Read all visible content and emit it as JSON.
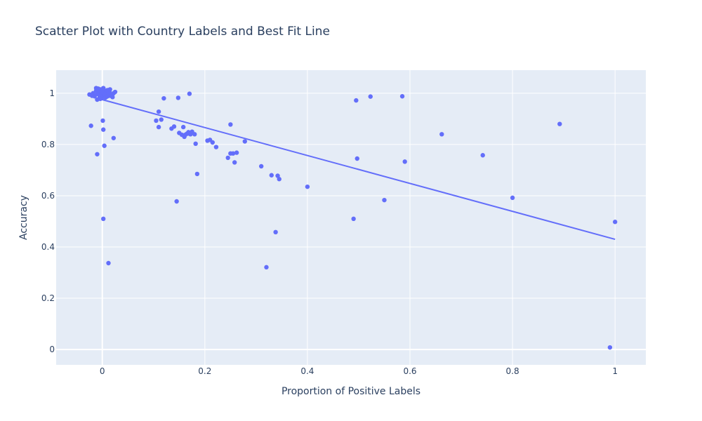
{
  "chart_data": {
    "type": "scatter",
    "title": "Scatter Plot with Country Labels and Best Fit Line",
    "xlabel": "Proportion of Positive Labels",
    "ylabel": "Accuracy",
    "xlim": [
      -0.09,
      1.06
    ],
    "ylim": [
      -0.06,
      1.09
    ],
    "x_ticks": [
      0,
      0.2,
      0.4,
      0.6,
      0.8,
      1
    ],
    "x_tick_labels": [
      "0",
      "0.2",
      "0.4",
      "0.6",
      "0.8",
      "1"
    ],
    "y_ticks": [
      0,
      0.2,
      0.4,
      0.6,
      0.8,
      1
    ],
    "y_tick_labels": [
      "0",
      "0.2",
      "0.4",
      "0.6",
      "0.8",
      "1"
    ],
    "grid": true,
    "colors": {
      "plot_bg": "#e5ecf6",
      "grid": "#ffffff",
      "marker": "#636efa",
      "line": "#636efa",
      "text": "#2a3f5f"
    },
    "best_fit": {
      "x": [
        0,
        1
      ],
      "y": [
        0.975,
        0.43
      ]
    },
    "series": [
      {
        "type": "scatter",
        "x": [
          -0.025,
          -0.02,
          -0.018,
          -0.015,
          -0.012,
          -0.01,
          -0.008,
          -0.006,
          -0.005,
          -0.004,
          -0.003,
          -0.002,
          -0.001,
          0,
          0.001,
          0.002,
          0.003,
          0.004,
          0.005,
          0.006,
          0.007,
          0.008,
          0.009,
          0.01,
          0.011,
          0.012,
          0.013,
          0.014,
          0.015,
          0.016,
          0.018,
          0.02,
          0.022,
          0.025,
          -0.012,
          -0.008,
          -0.004,
          0.002,
          0.006,
          0.01,
          -0.006,
          0.004,
          0.012,
          -0.002,
          0.008,
          0,
          -0.01,
          0.014,
          -0.022,
          -0.01,
          0.002,
          0.002,
          0.004,
          0.022,
          0.001,
          0.012,
          0.105,
          0.11,
          0.11,
          0.115,
          0.12,
          0.135,
          0.14,
          0.145,
          0.148,
          0.15,
          0.155,
          0.158,
          0.16,
          0.162,
          0.165,
          0.168,
          0.17,
          0.172,
          0.175,
          0.18,
          0.182,
          0.185,
          0.168,
          0.205,
          0.21,
          0.215,
          0.222,
          0.245,
          0.25,
          0.255,
          0.258,
          0.262,
          0.278,
          0.25,
          0.31,
          0.32,
          0.33,
          0.338,
          0.342,
          0.345,
          0.4,
          0.49,
          0.495,
          0.497,
          0.523,
          0.55,
          0.585,
          0.59,
          0.662,
          0.742,
          0.8,
          0.892,
          0.99,
          1.0
        ],
        "y": [
          0.995,
          0.99,
          1.0,
          0.988,
          1.01,
          0.975,
          0.998,
          1.005,
          0.985,
          1.015,
          0.992,
          0.98,
          1.008,
          0.99,
          1.0,
          1.012,
          0.995,
          0.985,
          1.005,
          0.99,
          1.0,
          1.01,
          0.995,
          0.988,
          1.002,
          0.998,
          0.992,
          1.008,
          1.015,
          0.99,
          0.995,
          0.985,
          1.0,
          1.005,
          1.02,
          1.018,
          0.978,
          1.02,
          0.983,
          1.012,
          0.995,
          1.0,
          0.99,
          1.004,
          0.986,
          1.01,
          0.997,
          1.0,
          0.873,
          0.762,
          0.51,
          0.858,
          0.795,
          0.825,
          0.893,
          0.337,
          0.893,
          0.868,
          0.928,
          0.897,
          0.98,
          0.862,
          0.87,
          0.578,
          0.982,
          0.845,
          0.838,
          0.868,
          0.83,
          0.838,
          0.842,
          0.848,
          0.998,
          0.84,
          0.85,
          0.84,
          0.803,
          0.685,
          0.843,
          0.815,
          0.818,
          0.808,
          0.79,
          0.748,
          0.878,
          0.765,
          0.73,
          0.768,
          0.812,
          0.765,
          0.715,
          0.321,
          0.68,
          0.458,
          0.678,
          0.665,
          0.635,
          0.51,
          0.972,
          0.745,
          0.987,
          0.583,
          0.988,
          0.733,
          0.84,
          0.758,
          0.592,
          0.88,
          0.008,
          0.498
        ]
      }
    ]
  }
}
